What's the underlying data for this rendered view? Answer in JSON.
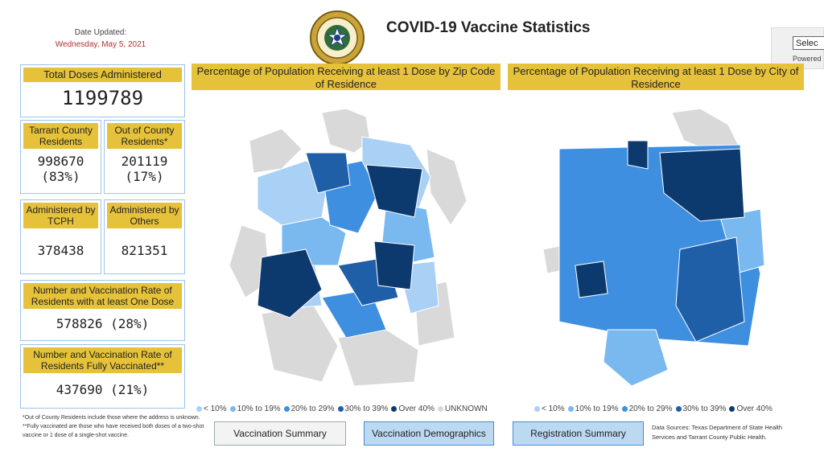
{
  "header": {
    "date_label": "Date Updated:",
    "date_value": "Wednesday, May 5, 2021",
    "title": "COVID-19 Vaccine Statistics",
    "seal_icon": "county-seal-icon"
  },
  "stats": {
    "total": {
      "label": "Total Doses Administered",
      "value": "1199789"
    },
    "tarrant": {
      "label": "Tarrant County Residents",
      "value": "998670",
      "pct": "(83%)"
    },
    "outcounty": {
      "label": "Out of County Residents*",
      "value": "201119",
      "pct": "(17%)"
    },
    "tcph": {
      "label": "Administered by TCPH",
      "value": "378438"
    },
    "others": {
      "label": "Administered by Others",
      "value": "821351"
    },
    "one_dose": {
      "label": "Number and Vaccination Rate of Residents with at least One Dose",
      "value": "578826 (28%)"
    },
    "full": {
      "label": "Number and Vaccination Rate of Residents Fully Vaccinated**",
      "value": "437690 (21%)"
    }
  },
  "maps": {
    "zip": {
      "title": "Percentage of Population Receiving at least 1 Dose by Zip Code of Residence",
      "legend": [
        {
          "label": "< 10%",
          "color": "#a9d0f5"
        },
        {
          "label": "10% to 19%",
          "color": "#7ab8f0"
        },
        {
          "label": "20% to 29%",
          "color": "#3f8fe0"
        },
        {
          "label": "30% to 39%",
          "color": "#1f5fa8"
        },
        {
          "label": "Over 40%",
          "color": "#0d3a6e"
        },
        {
          "label": "UNKNOWN",
          "color": "#d9d9d9"
        }
      ]
    },
    "city": {
      "title": "Percentage of Population Receiving at least 1 Dose by City of Residence",
      "legend": [
        {
          "label": "< 10%",
          "color": "#a9d0f5"
        },
        {
          "label": "10% to 19%",
          "color": "#7ab8f0"
        },
        {
          "label": "20% to 29%",
          "color": "#3f8fe0"
        },
        {
          "label": "30% to 39%",
          "color": "#1f5fa8"
        },
        {
          "label": "Over 40%",
          "color": "#0d3a6e"
        }
      ]
    }
  },
  "buttons": {
    "summary": "Vaccination Summary",
    "demographics": "Vaccination Demographics",
    "registration": "Registration Summary"
  },
  "footnote": "*Out of County Residents include those where the address is unknown. **Fully vaccinated are those who have received both doses of a two-shot vaccine or 1 dose of a single-shot vaccine.",
  "sources": "Data Sources: Texas Department of State Health Services and Tarrant County Public Health.",
  "side_panel": {
    "select_value": "Selec",
    "powered": "Powered"
  }
}
